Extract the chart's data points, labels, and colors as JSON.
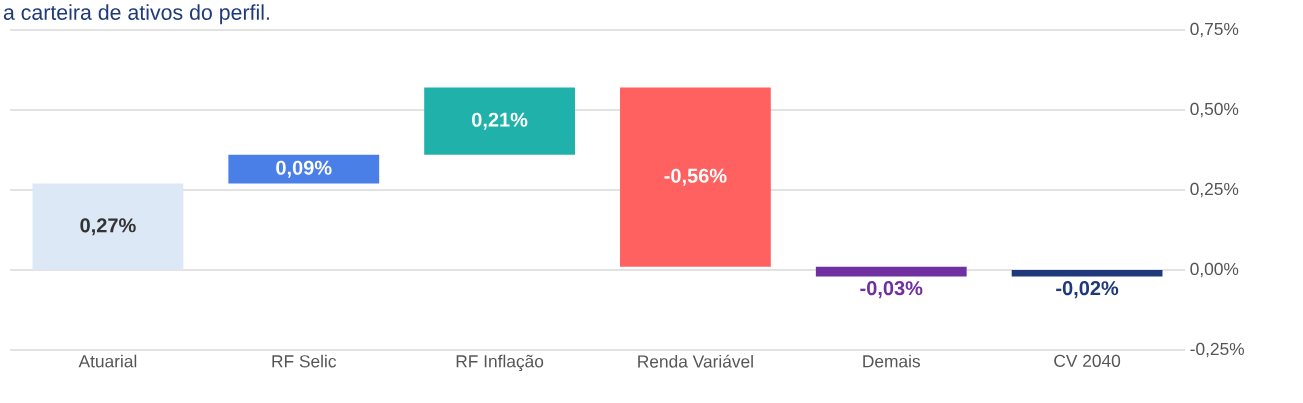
{
  "chart_data": {
    "type": "bar",
    "title": "a carteira de ativos do perfil.",
    "categories": [
      "Atuarial",
      "RF Selic",
      "RF Inflação",
      "Renda Variável",
      "Demais",
      "CV 2040"
    ],
    "values": [
      0.27,
      0.09,
      0.21,
      -0.56,
      -0.03,
      -0.02
    ],
    "base": [
      0,
      0.27,
      0.36,
      0.57,
      0.01,
      0
    ],
    "colors": [
      "#dce8f5",
      "#4a7fe8",
      "#20b2aa",
      "#ff6161",
      "#7030a0",
      "#1f3a7a"
    ],
    "value_labels": [
      "0,27%",
      "0,09%",
      "0,21%",
      "-0,56%",
      "-0,03%",
      "-0,02%"
    ],
    "ylim": [
      -0.25,
      0.75
    ],
    "yticks": [
      {
        "value": -0.25,
        "label": "-0,25%"
      },
      {
        "value": 0,
        "label": "0,00%"
      },
      {
        "value": 0.25,
        "label": "0,25%"
      },
      {
        "value": 0.5,
        "label": "0,50%"
      },
      {
        "value": 0.75,
        "label": "0,75%"
      }
    ],
    "grid": "y"
  }
}
